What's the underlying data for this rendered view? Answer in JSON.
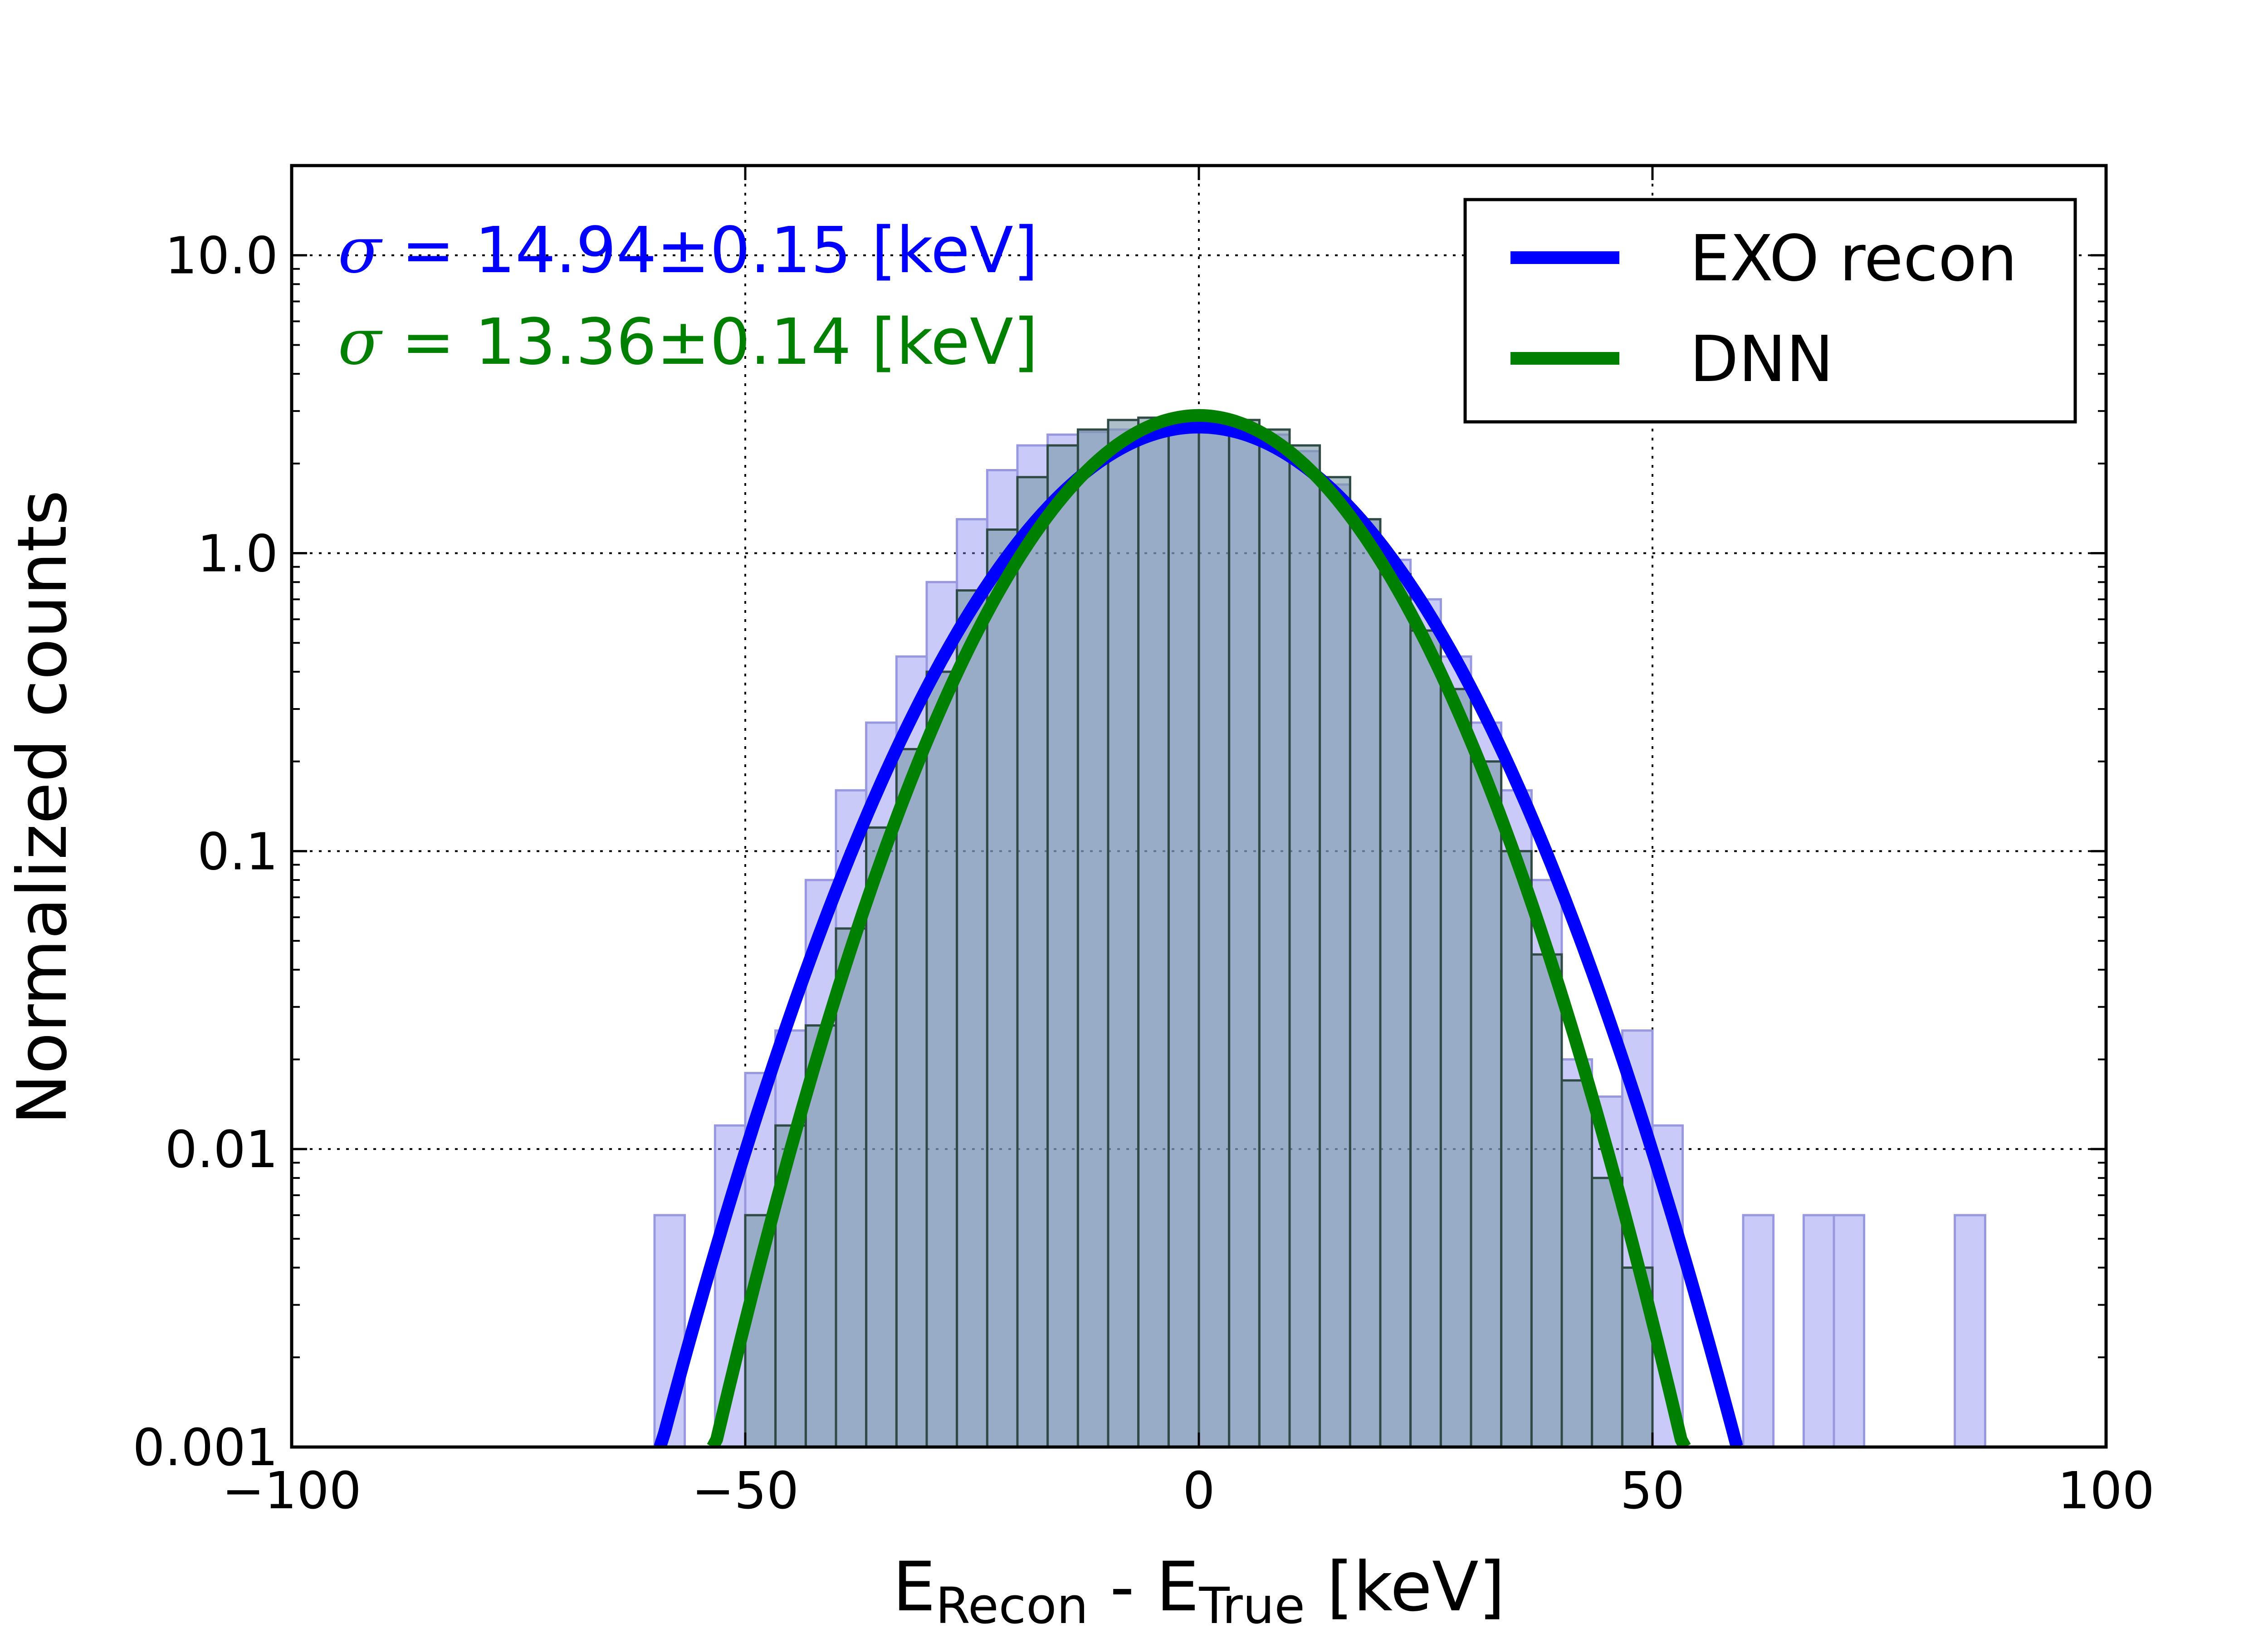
{
  "chart_data": {
    "type": "histogram",
    "xlabel": {
      "main": "E",
      "sub1": "Recon",
      "mid": " - E",
      "sub2": "True",
      "unit": " [keV]"
    },
    "ylabel": "Normalized counts",
    "yscale": "log",
    "xlim": [
      -100,
      100
    ],
    "ylim": [
      0.001,
      20
    ],
    "x_ticks": [
      {
        "value": -100,
        "label": "−100"
      },
      {
        "value": -50,
        "label": "−50"
      },
      {
        "value": 0,
        "label": "0"
      },
      {
        "value": 50,
        "label": "50"
      },
      {
        "value": 100,
        "label": "100"
      }
    ],
    "y_ticks": [
      {
        "value": 0.001,
        "label": "0.001"
      },
      {
        "value": 0.01,
        "label": "0.01"
      },
      {
        "value": 0.1,
        "label": "0.1"
      },
      {
        "value": 1,
        "label": "1.0"
      },
      {
        "value": 10,
        "label": "10.0"
      }
    ],
    "grid": true,
    "legend_position": "top-right",
    "bin_edges": [
      -60,
      -56.67,
      -53.33,
      -50,
      -46.67,
      -43.33,
      -40,
      -36.67,
      -33.33,
      -30,
      -26.67,
      -23.33,
      -20,
      -16.67,
      -13.33,
      -10,
      -6.67,
      -3.33,
      0,
      3.33,
      6.67,
      10,
      13.33,
      16.67,
      20,
      23.33,
      26.67,
      30,
      33.33,
      36.67,
      40,
      43.33,
      46.67,
      50,
      53.33,
      56.67,
      60,
      63.33,
      66.67,
      70,
      73.33,
      76.67,
      80,
      83.33,
      86.67
    ],
    "series": [
      {
        "name": "EXO recon",
        "hist_color": "#8080f0",
        "line_color": "#0000ff",
        "counts": [
          0.006,
          0,
          0.012,
          0.018,
          0.025,
          0.08,
          0.16,
          0.27,
          0.45,
          0.8,
          1.3,
          1.9,
          2.3,
          2.5,
          2.55,
          2.6,
          2.62,
          2.62,
          2.6,
          2.55,
          2.5,
          2.2,
          1.7,
          1.3,
          0.95,
          0.7,
          0.45,
          0.27,
          0.16,
          0.08,
          0.02,
          0.015,
          0.025,
          0.012,
          0,
          0,
          0.006,
          0,
          0.006,
          0.006,
          0,
          0,
          0,
          0.006
        ],
        "fit_sigma": 14.94,
        "fit_amplitude": 2.65,
        "fit_range": [
          -59.9,
          59.8
        ],
        "annotation": {
          "prefix": " = ",
          "value": "14.94±0.15 [keV]"
        }
      },
      {
        "name": "DNN",
        "hist_color": "#7a9aa8",
        "line_color": "#008000",
        "counts": [
          0,
          0,
          0,
          0.006,
          0.012,
          0.026,
          0.055,
          0.12,
          0.22,
          0.4,
          0.75,
          1.2,
          1.8,
          2.3,
          2.6,
          2.8,
          2.85,
          2.85,
          2.85,
          2.8,
          2.6,
          2.3,
          1.8,
          1.3,
          0.85,
          0.55,
          0.35,
          0.2,
          0.1,
          0.045,
          0.017,
          0.008,
          0.004,
          0,
          0,
          0,
          0,
          0,
          0,
          0,
          0,
          0,
          0,
          0
        ],
        "fit_sigma": 13.36,
        "fit_amplitude": 2.9,
        "fit_range": [
          -53.6,
          53.6
        ],
        "annotation": {
          "prefix": " = ",
          "value": "13.36±0.14 [keV]"
        }
      }
    ],
    "sigma_symbol": "σ"
  }
}
